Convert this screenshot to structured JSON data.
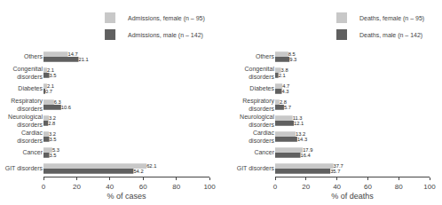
{
  "chart_data": [
    {
      "type": "bar",
      "orientation": "horizontal",
      "categories": [
        "GIT disorders",
        "Cancer",
        "Cardiac\ndisorders",
        "Neurological\ndisorders",
        "Respiratory\ndisorders",
        "Diabetes",
        "Congenital\ndisorders",
        "Others"
      ],
      "series": [
        {
          "name": "Admissions, female (n – 95)",
          "color": "#c8c8c8",
          "values": [
            62.1,
            5.3,
            3.2,
            3.2,
            6.3,
            2.1,
            2.1,
            14.7
          ]
        },
        {
          "name": "Admissions, male (n – 142)",
          "color": "#606060",
          "values": [
            54.2,
            3.5,
            3.5,
            2.8,
            10.6,
            0.7,
            3.5,
            21.1
          ]
        }
      ],
      "xlabel": "% of cases",
      "xlim": [
        0,
        100
      ],
      "xticks": [
        0,
        20,
        40,
        60,
        80,
        100
      ],
      "data_labels": true,
      "legend": "upper right",
      "grid": false
    },
    {
      "type": "bar",
      "orientation": "horizontal",
      "categories": [
        "GIT disorders",
        "Cancer",
        "Cardiac\ndisorders",
        "Neurological\ndisorders",
        "Respiratory\ndisorders",
        "Diabetes",
        "Congenital\ndisorders",
        "Others"
      ],
      "series": [
        {
          "name": "Deaths, female (n – 95)",
          "color": "#c8c8c8",
          "values": [
            37.7,
            17.9,
            13.2,
            11.3,
            2.8,
            4.7,
            3.8,
            8.5
          ]
        },
        {
          "name": "Deaths, male (n – 142)",
          "color": "#606060",
          "values": [
            35.7,
            16.4,
            14.3,
            12.1,
            5.7,
            4.3,
            2.1,
            9.3
          ]
        }
      ],
      "xlabel": "% of deaths",
      "xlim": [
        0,
        100
      ],
      "xticks": [
        0,
        20,
        40,
        60,
        80,
        100
      ],
      "data_labels": true,
      "legend": "upper right",
      "grid": false
    }
  ]
}
